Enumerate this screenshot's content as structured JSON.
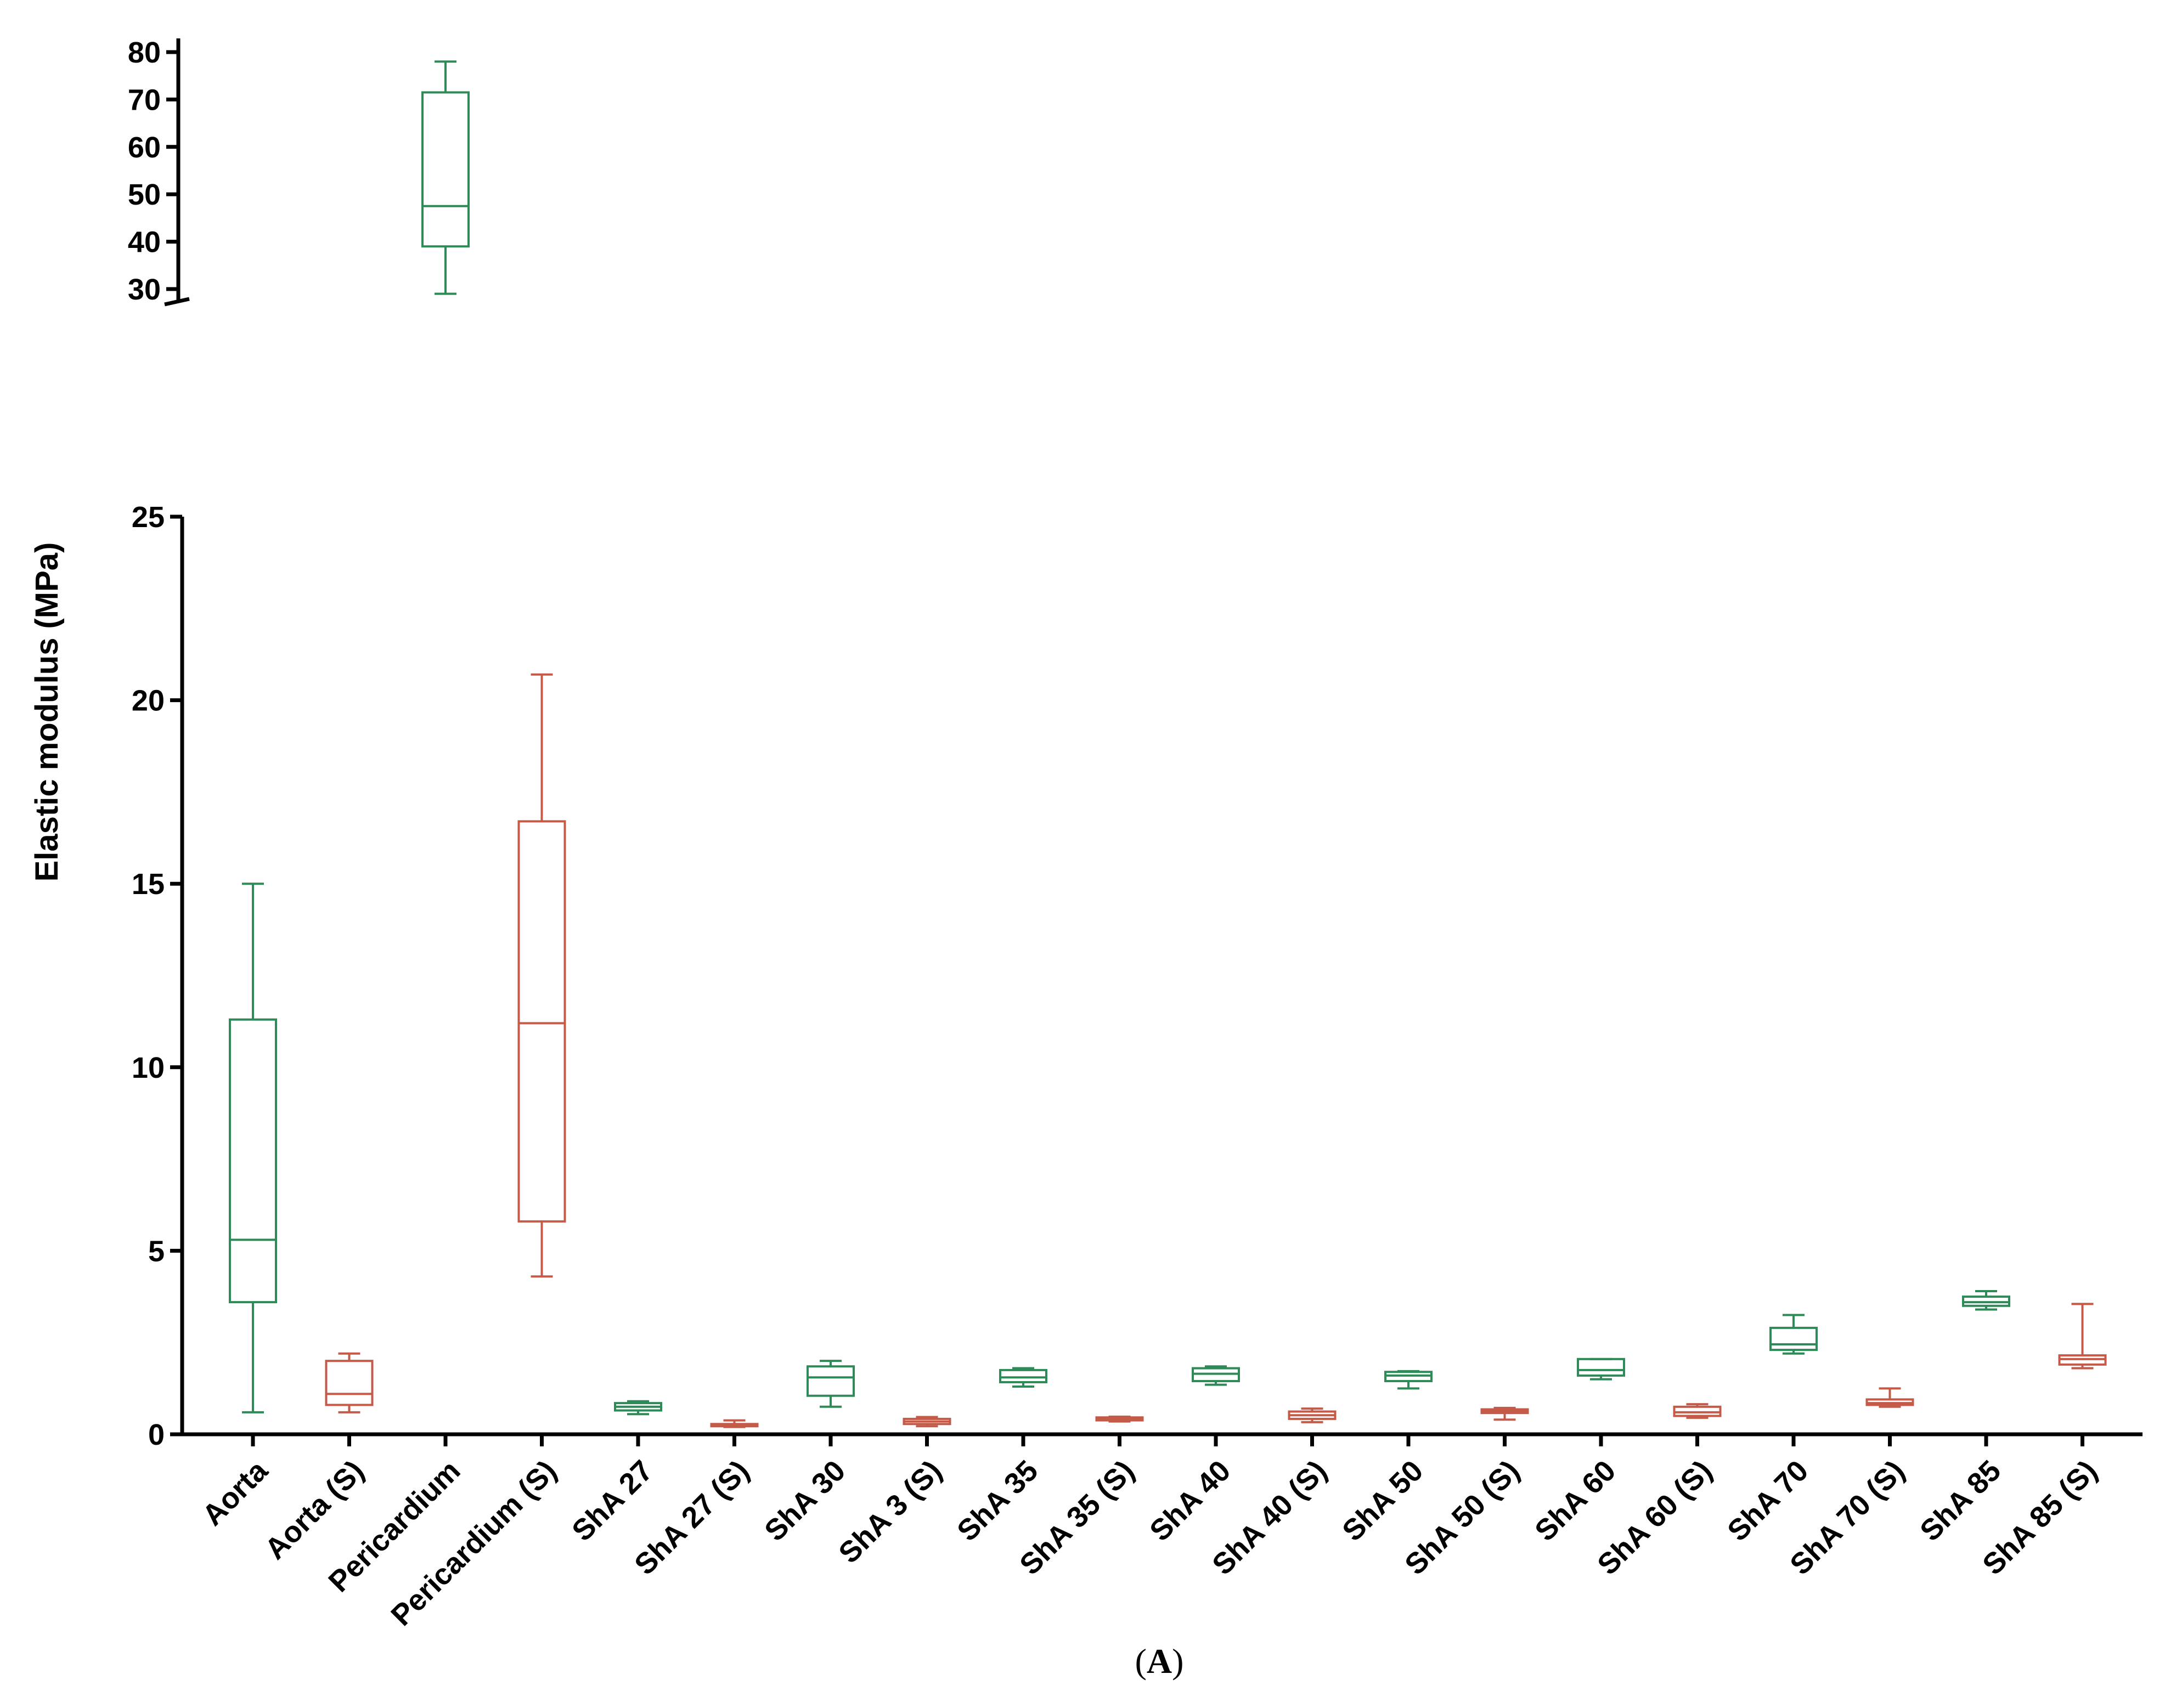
{
  "chart_data": {
    "type": "box",
    "ylabel": "Elastic modulus (MPa)",
    "xlabel": "",
    "panel_label": "A",
    "panel_label_open": "(",
    "panel_label_close": ")",
    "axis_break": true,
    "upper_segment": {
      "ylim": [
        27,
        82
      ],
      "ticks": [
        "30",
        "40",
        "50",
        "60",
        "70",
        "80"
      ]
    },
    "lower_segment": {
      "ylim": [
        0,
        25
      ],
      "ticks": [
        "0",
        "5",
        "10",
        "15",
        "20",
        "25"
      ]
    },
    "colors": {
      "native": "#2e8b57",
      "fixed": "#c45a48"
    },
    "categories": [
      "Aorta",
      "Aorta (S)",
      "Pericardium",
      "Pericardium (S)",
      "ShA 27",
      "ShA 27 (S)",
      "ShA 30",
      "ShA 3 (S)",
      "ShA 35",
      "ShA 35 (S)",
      "ShA 40",
      "ShA 40 (S)",
      "ShA 50",
      "ShA 50 (S)",
      "ShA 60",
      "ShA 60 (S)",
      "ShA 70",
      "ShA 70 (S)",
      "ShA 85",
      "ShA 85 (S)"
    ],
    "boxes": [
      {
        "name": "Aorta",
        "group": "native",
        "min": 0.6,
        "q1": 3.6,
        "median": 5.3,
        "q3": 11.3,
        "max": 15.0
      },
      {
        "name": "Aorta (S)",
        "group": "fixed",
        "min": 0.6,
        "q1": 0.8,
        "median": 1.1,
        "q3": 2.0,
        "max": 2.2
      },
      {
        "name": "Pericardium",
        "group": "native",
        "min": 29.0,
        "q1": 39.0,
        "median": 47.5,
        "q3": 71.5,
        "max": 78.0
      },
      {
        "name": "Pericardium (S)",
        "group": "fixed",
        "min": 4.3,
        "q1": 5.8,
        "median": 11.2,
        "q3": 16.7,
        "max": 20.7
      },
      {
        "name": "ShA 27",
        "group": "native",
        "min": 0.55,
        "q1": 0.65,
        "median": 0.75,
        "q3": 0.85,
        "max": 0.9
      },
      {
        "name": "ShA 27 (S)",
        "group": "fixed",
        "min": 0.2,
        "q1": 0.22,
        "median": 0.25,
        "q3": 0.28,
        "max": 0.38
      },
      {
        "name": "ShA 30",
        "group": "native",
        "min": 0.75,
        "q1": 1.05,
        "median": 1.55,
        "q3": 1.85,
        "max": 2.0
      },
      {
        "name": "ShA 3 (S)",
        "group": "fixed",
        "min": 0.22,
        "q1": 0.28,
        "median": 0.35,
        "q3": 0.42,
        "max": 0.47
      },
      {
        "name": "ShA 35",
        "group": "native",
        "min": 1.3,
        "q1": 1.42,
        "median": 1.55,
        "q3": 1.75,
        "max": 1.8
      },
      {
        "name": "ShA 35 (S)",
        "group": "fixed",
        "min": 0.35,
        "q1": 0.38,
        "median": 0.42,
        "q3": 0.46,
        "max": 0.48
      },
      {
        "name": "ShA 40",
        "group": "native",
        "min": 1.35,
        "q1": 1.45,
        "median": 1.65,
        "q3": 1.8,
        "max": 1.85
      },
      {
        "name": "ShA 40 (S)",
        "group": "fixed",
        "min": 0.33,
        "q1": 0.42,
        "median": 0.52,
        "q3": 0.62,
        "max": 0.7
      },
      {
        "name": "ShA 50",
        "group": "native",
        "min": 1.25,
        "q1": 1.45,
        "median": 1.6,
        "q3": 1.7,
        "max": 1.72
      },
      {
        "name": "ShA 50 (S)",
        "group": "fixed",
        "min": 0.4,
        "q1": 0.58,
        "median": 0.63,
        "q3": 0.68,
        "max": 0.72
      },
      {
        "name": "ShA 60",
        "group": "native",
        "min": 1.5,
        "q1": 1.6,
        "median": 1.75,
        "q3": 2.05,
        "max": 2.05
      },
      {
        "name": "ShA 60 (S)",
        "group": "fixed",
        "min": 0.45,
        "q1": 0.5,
        "median": 0.6,
        "q3": 0.75,
        "max": 0.82
      },
      {
        "name": "ShA 70",
        "group": "native",
        "min": 2.2,
        "q1": 2.3,
        "median": 2.45,
        "q3": 2.9,
        "max": 3.25
      },
      {
        "name": "ShA 70 (S)",
        "group": "fixed",
        "min": 0.75,
        "q1": 0.8,
        "median": 0.85,
        "q3": 0.95,
        "max": 1.25
      },
      {
        "name": "ShA 85",
        "group": "native",
        "min": 3.4,
        "q1": 3.5,
        "median": 3.6,
        "q3": 3.75,
        "max": 3.9
      },
      {
        "name": "ShA 85 (S)",
        "group": "fixed",
        "min": 1.8,
        "q1": 1.9,
        "median": 2.05,
        "q3": 2.15,
        "max": 3.55
      }
    ]
  }
}
